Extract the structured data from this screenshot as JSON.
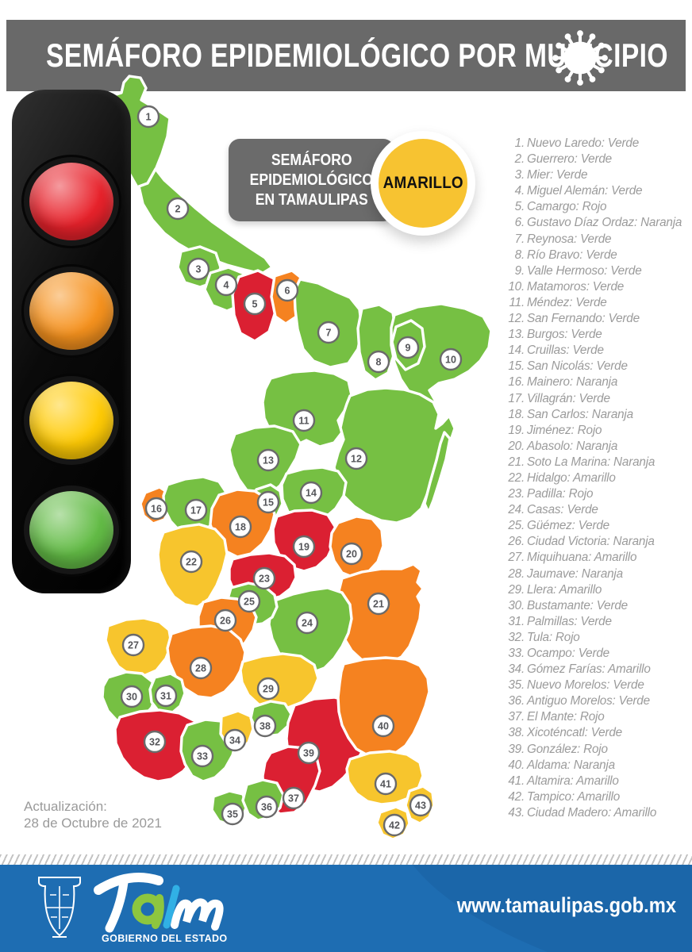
{
  "header": {
    "title": "SEMÁFORO EPIDEMIOLÓGICO POR MUNICIPIO"
  },
  "callout": {
    "lines": [
      "SEMÁFORO",
      "EPIDEMIOLÓGICO",
      "EN TAMAULIPAS"
    ],
    "badge": "AMARILLO"
  },
  "status_colors": {
    "Verde": "#76C043",
    "Amarillo": "#F7C52D",
    "Naranja": "#F58220",
    "Rojo": "#DB2032"
  },
  "traffic_light": [
    {
      "name": "red",
      "color": "#E8222B"
    },
    {
      "name": "orange",
      "color": "#F6921E"
    },
    {
      "name": "yellow",
      "color": "#FFCB05"
    },
    {
      "name": "green",
      "color": "#63BC46"
    }
  ],
  "municipalities": [
    {
      "n": 1,
      "name": "Nuevo Laredo",
      "status": "Verde"
    },
    {
      "n": 2,
      "name": "Guerrero",
      "status": "Verde"
    },
    {
      "n": 3,
      "name": "Mier",
      "status": "Verde"
    },
    {
      "n": 4,
      "name": "Miguel Alemán",
      "status": "Verde"
    },
    {
      "n": 5,
      "name": "Camargo",
      "status": "Rojo"
    },
    {
      "n": 6,
      "name": "Gustavo Díaz Ordaz",
      "status": "Naranja"
    },
    {
      "n": 7,
      "name": "Reynosa",
      "status": "Verde"
    },
    {
      "n": 8,
      "name": "Río Bravo",
      "status": "Verde"
    },
    {
      "n": 9,
      "name": "Valle Hermoso",
      "status": "Verde"
    },
    {
      "n": 10,
      "name": "Matamoros",
      "status": "Verde"
    },
    {
      "n": 11,
      "name": "Méndez",
      "status": "Verde"
    },
    {
      "n": 12,
      "name": "San Fernando",
      "status": "Verde"
    },
    {
      "n": 13,
      "name": "Burgos",
      "status": "Verde"
    },
    {
      "n": 14,
      "name": "Cruillas",
      "status": "Verde"
    },
    {
      "n": 15,
      "name": "San Nicolás",
      "status": "Verde"
    },
    {
      "n": 16,
      "name": "Mainero",
      "status": "Naranja"
    },
    {
      "n": 17,
      "name": "Villagrán",
      "status": "Verde"
    },
    {
      "n": 18,
      "name": "San Carlos",
      "status": "Naranja"
    },
    {
      "n": 19,
      "name": "Jiménez",
      "status": "Rojo"
    },
    {
      "n": 20,
      "name": "Abasolo",
      "status": "Naranja"
    },
    {
      "n": 21,
      "name": "Soto La Marina",
      "status": "Naranja"
    },
    {
      "n": 22,
      "name": "Hidalgo",
      "status": "Amarillo"
    },
    {
      "n": 23,
      "name": "Padilla",
      "status": "Rojo"
    },
    {
      "n": 24,
      "name": "Casas",
      "status": "Verde"
    },
    {
      "n": 25,
      "name": "Güémez",
      "status": "Verde"
    },
    {
      "n": 26,
      "name": "Ciudad Victoria",
      "status": "Naranja"
    },
    {
      "n": 27,
      "name": "Miquihuana",
      "status": "Amarillo"
    },
    {
      "n": 28,
      "name": "Jaumave",
      "status": "Naranja"
    },
    {
      "n": 29,
      "name": "Llera",
      "status": "Amarillo"
    },
    {
      "n": 30,
      "name": "Bustamante",
      "status": "Verde"
    },
    {
      "n": 31,
      "name": "Palmillas",
      "status": "Verde"
    },
    {
      "n": 32,
      "name": "Tula",
      "status": "Rojo"
    },
    {
      "n": 33,
      "name": "Ocampo",
      "status": "Verde"
    },
    {
      "n": 34,
      "name": "Gómez Farías",
      "status": "Amarillo"
    },
    {
      "n": 35,
      "name": "Nuevo Morelos",
      "status": "Verde"
    },
    {
      "n": 36,
      "name": "Antiguo Morelos",
      "status": "Verde"
    },
    {
      "n": 37,
      "name": "El Mante",
      "status": "Rojo"
    },
    {
      "n": 38,
      "name": "Xicoténcatl",
      "status": "Verde"
    },
    {
      "n": 39,
      "name": "González",
      "status": "Rojo"
    },
    {
      "n": 40,
      "name": "Aldama",
      "status": "Naranja"
    },
    {
      "n": 41,
      "name": "Altamira",
      "status": "Amarillo"
    },
    {
      "n": 42,
      "name": "Tampico",
      "status": "Amarillo"
    },
    {
      "n": 43,
      "name": "Ciudad Madero",
      "status": "Amarillo"
    }
  ],
  "update": {
    "label": "Actualización:",
    "date": "28 de Octubre de 2021"
  },
  "footer": {
    "logo_word": "Tam",
    "gov_label": "GOBIERNO DEL ESTADO",
    "website": "www.tamaulipas.gob.mx",
    "bar_color": "#1E6DB2",
    "logo_green": "#8DC63F",
    "logo_blue": "#31B0E5"
  }
}
